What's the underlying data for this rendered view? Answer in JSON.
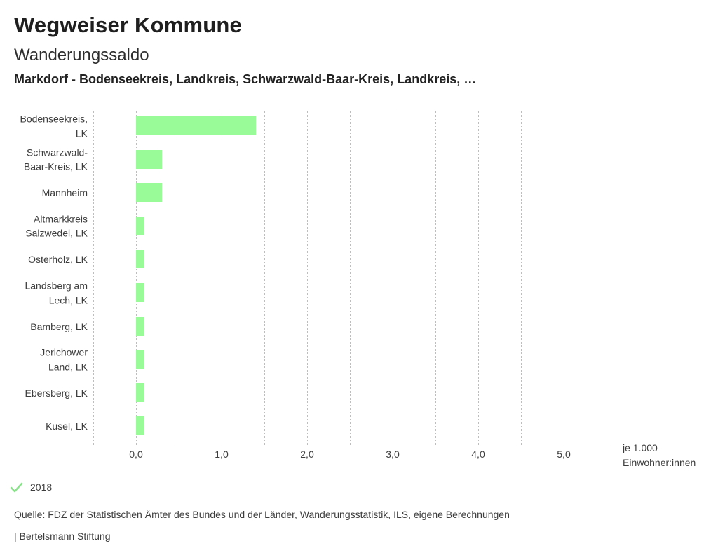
{
  "header": {
    "title": "Wegweiser Kommune",
    "subtitle": "Wanderungssaldo",
    "comparison": "Markdorf - Bodenseekreis, Landkreis, Schwarzwald-Baar-Kreis, Landkreis, …"
  },
  "chart_data": {
    "type": "bar",
    "orientation": "horizontal",
    "title": "Wanderungssaldo",
    "categories": [
      "Bodenseekreis, LK",
      "Schwarzwald-Baar-Kreis, LK",
      "Mannheim",
      "Altmarkkreis Salzwedel, LK",
      "Osterholz, LK",
      "Landsberg am Lech, LK",
      "Bamberg, LK",
      "Jerichower Land, LK",
      "Ebersberg, LK",
      "Kusel, LK"
    ],
    "category_label_lines": [
      [
        "Bodenseekreis,",
        "LK"
      ],
      [
        "Schwarzwald-",
        "Baar-Kreis, LK"
      ],
      [
        "Mannheim"
      ],
      [
        "Altmarkkreis",
        "Salzwedel, LK"
      ],
      [
        "Osterholz, LK"
      ],
      [
        "Landsberg am",
        "Lech, LK"
      ],
      [
        "Bamberg, LK"
      ],
      [
        "Jerichower",
        "Land, LK"
      ],
      [
        "Ebersberg, LK"
      ],
      [
        "Kusel, LK"
      ]
    ],
    "values": [
      1.4,
      0.3,
      0.3,
      0.1,
      0.1,
      0.1,
      0.1,
      0.1,
      0.1,
      0.1
    ],
    "series_year": "2018",
    "xlabel": "je 1.000 Einwohner:innen",
    "xlabel_lines": [
      "je 1.000",
      "Einwohner:innen"
    ],
    "xlim": [
      -0.5,
      5.5
    ],
    "xticks": [
      0,
      1,
      2,
      3,
      4,
      5
    ],
    "xtick_labels": [
      "0,0",
      "1,0",
      "2,0",
      "3,0",
      "4,0",
      "5,0"
    ],
    "grid": true,
    "grid_step": 0.5,
    "bar_color": "#98fb98",
    "legend_position": "bottom-left"
  },
  "legend": {
    "year": "2018",
    "check_color": "#8ce28c"
  },
  "footer": {
    "source": "Quelle: FDZ der Statistischen Ämter des Bundes und der Länder, Wanderungsstatistik, ILS, eigene Berechnungen",
    "branding": "| Bertelsmann Stiftung"
  }
}
